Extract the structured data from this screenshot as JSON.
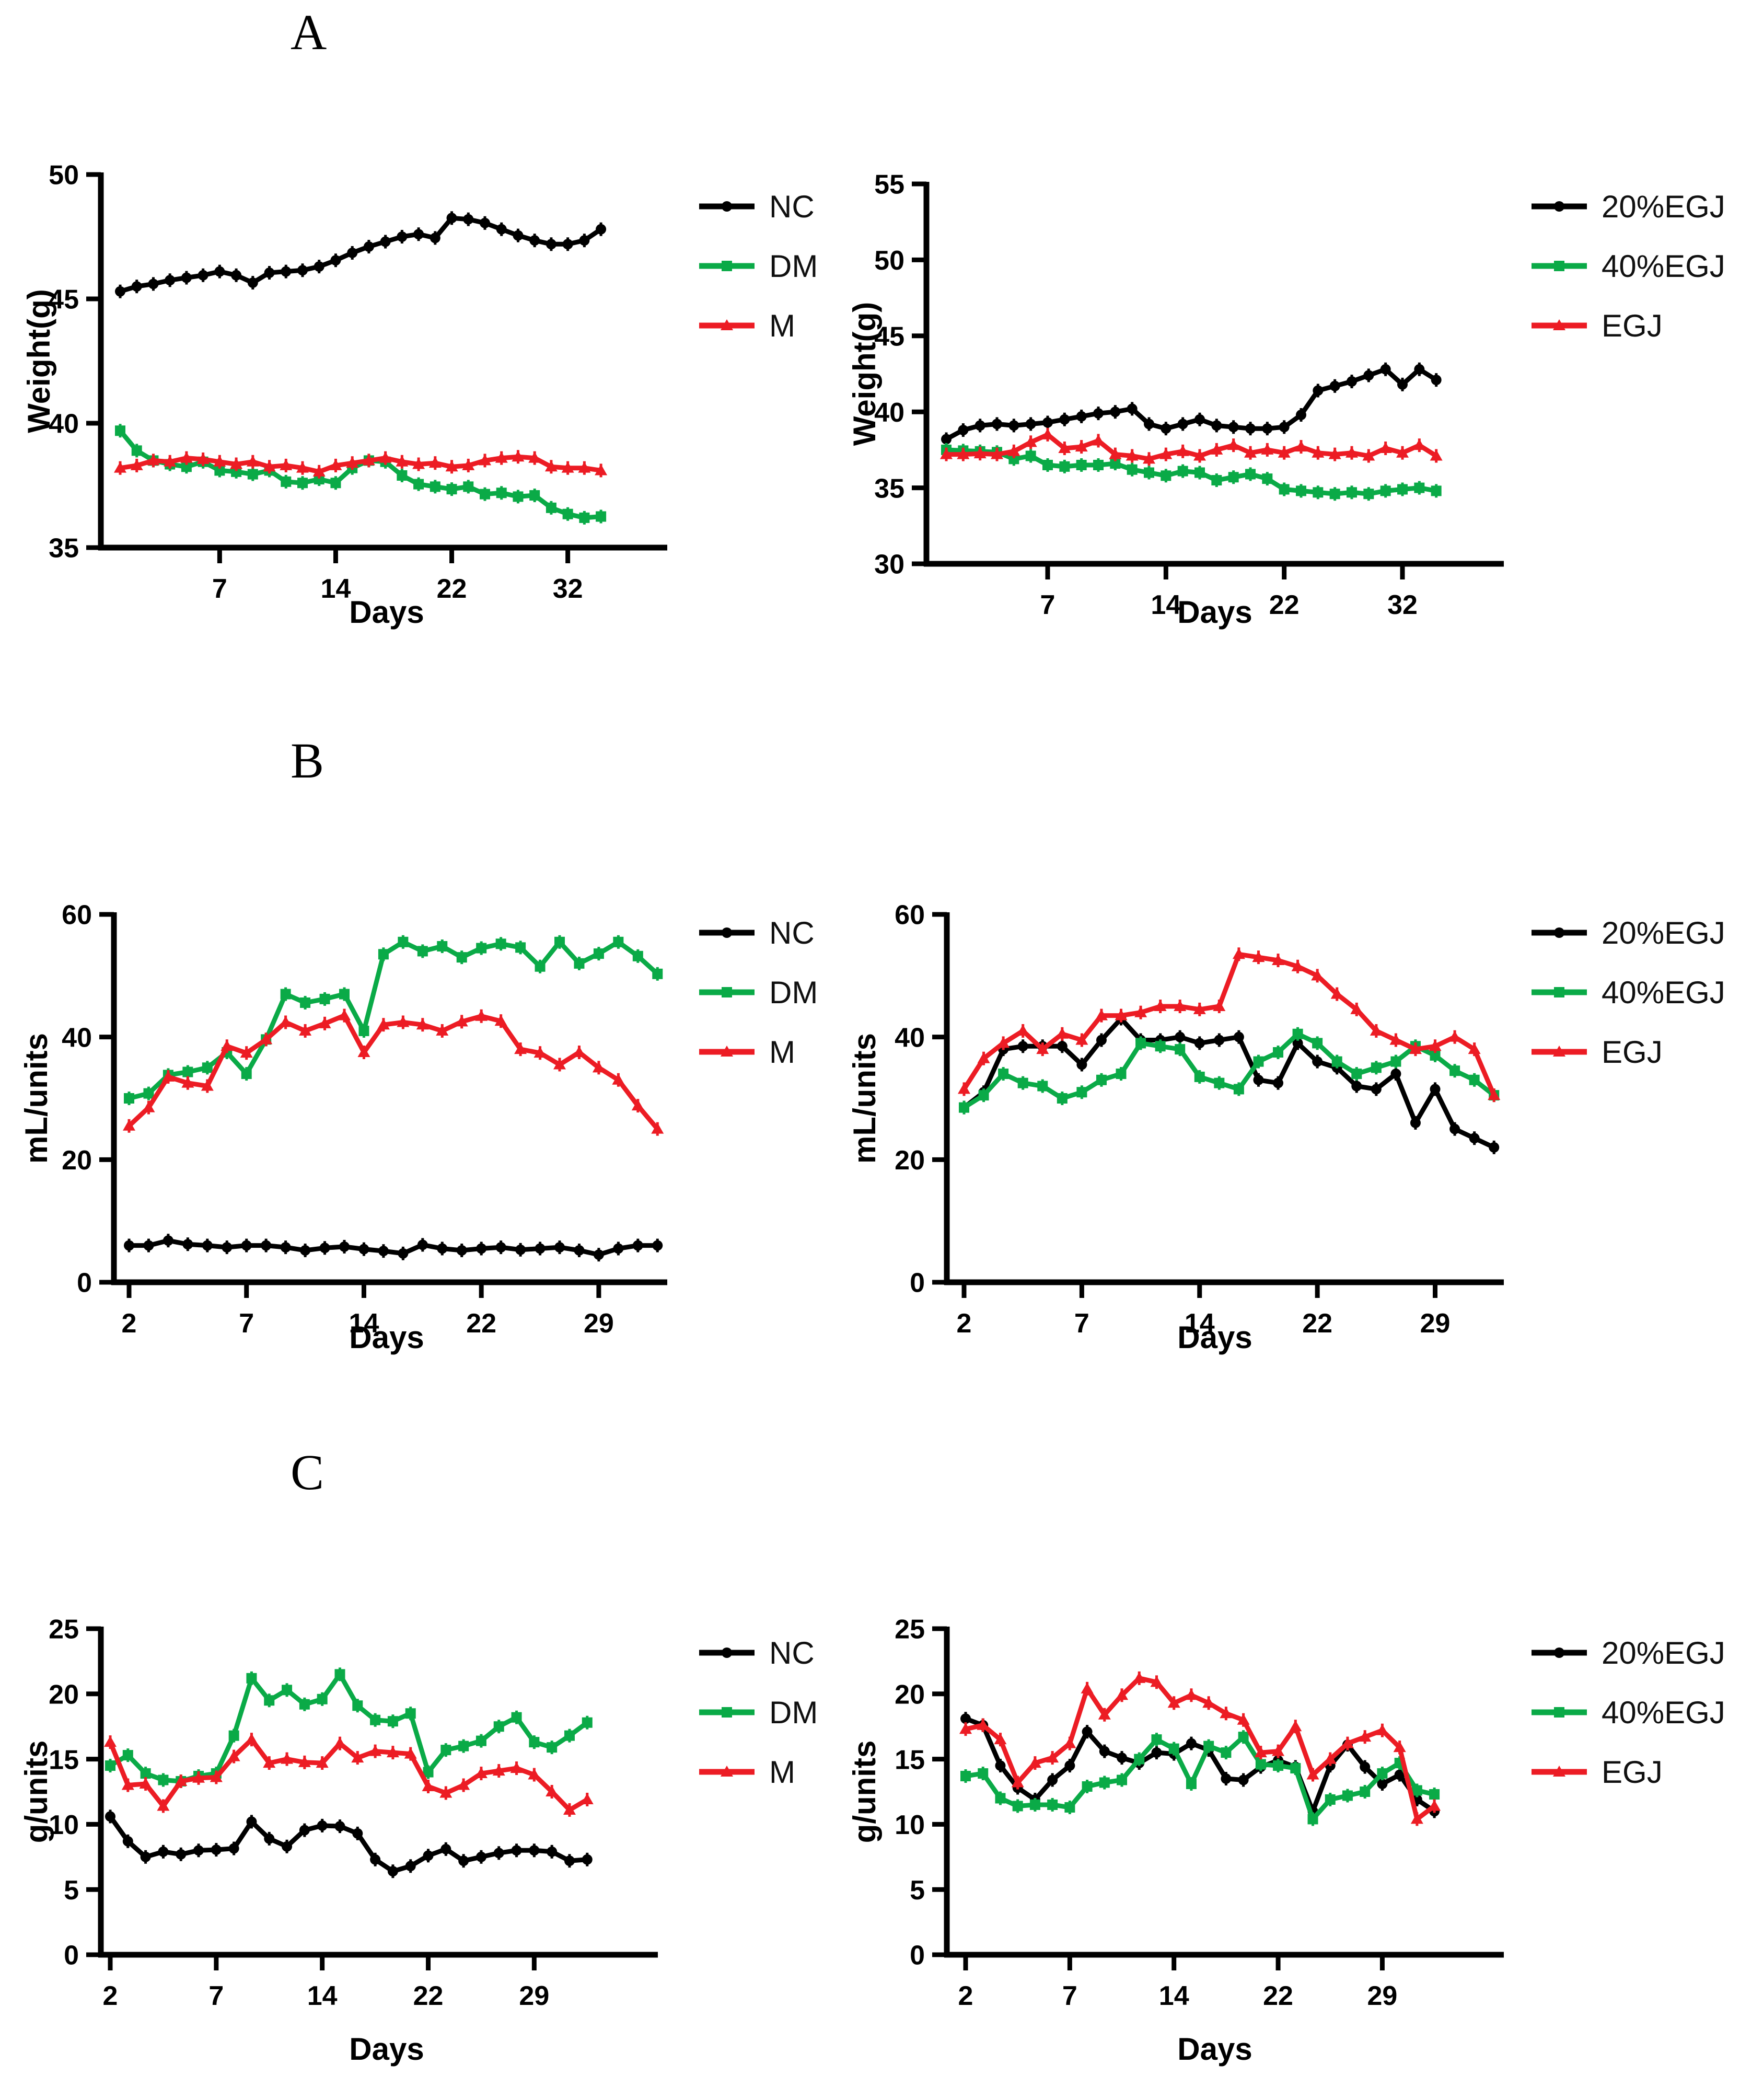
{
  "panels": [
    {
      "label": "A"
    },
    {
      "label": "B"
    },
    {
      "label": "C"
    }
  ],
  "colors": {
    "nc_black": "#000000",
    "dm_green": "#0aaa47",
    "m_red": "#ec1c24"
  },
  "chart_data": [
    {
      "type": "line",
      "panel": "A",
      "position": "left",
      "title": "",
      "xlabel": "Days",
      "ylabel": "Weight(g)",
      "ylim": [
        35,
        50
      ],
      "yticks": [
        35,
        40,
        45,
        50
      ],
      "xticks": {
        "labels": [
          "7",
          "14",
          "22",
          "32"
        ],
        "indices": [
          6,
          13,
          20,
          27
        ]
      },
      "x_count": 30,
      "grid": false,
      "legend_position": "right",
      "series": [
        {
          "name": "NC",
          "color": "#000000",
          "marker": "circle",
          "values": [
            45.3,
            45.5,
            45.6,
            45.75,
            45.85,
            45.95,
            46.1,
            45.95,
            45.65,
            46.05,
            46.1,
            46.15,
            46.3,
            46.55,
            46.85,
            47.1,
            47.3,
            47.5,
            47.6,
            47.45,
            48.25,
            48.2,
            48.05,
            47.8,
            47.55,
            47.35,
            47.2,
            47.2,
            47.35,
            47.8
          ]
        },
        {
          "name": "DM",
          "color": "#0aaa47",
          "marker": "square",
          "values": [
            39.7,
            38.9,
            38.5,
            38.35,
            38.25,
            38.45,
            38.1,
            38.05,
            37.95,
            38.1,
            37.65,
            37.6,
            37.75,
            37.6,
            38.2,
            38.5,
            38.45,
            37.9,
            37.55,
            37.45,
            37.35,
            37.45,
            37.15,
            37.2,
            37.05,
            37.1,
            36.6,
            36.35,
            36.2,
            36.25
          ]
        },
        {
          "name": "M",
          "color": "#ec1c24",
          "marker": "triangle",
          "values": [
            38.2,
            38.3,
            38.5,
            38.45,
            38.6,
            38.55,
            38.45,
            38.35,
            38.45,
            38.25,
            38.3,
            38.2,
            38.05,
            38.3,
            38.4,
            38.5,
            38.6,
            38.45,
            38.35,
            38.4,
            38.25,
            38.3,
            38.5,
            38.6,
            38.65,
            38.6,
            38.25,
            38.2,
            38.2,
            38.1
          ]
        }
      ]
    },
    {
      "type": "line",
      "panel": "A",
      "position": "right",
      "title": "",
      "xlabel": "Days",
      "ylabel": "Weight(g)",
      "ylim": [
        30,
        55
      ],
      "yticks": [
        30,
        35,
        40,
        45,
        50,
        55
      ],
      "xticks": {
        "labels": [
          "7",
          "14",
          "22",
          "32"
        ],
        "indices": [
          6,
          13,
          20,
          27
        ]
      },
      "x_count": 30,
      "grid": false,
      "legend_position": "right",
      "series": [
        {
          "name": "20%EGJ",
          "color": "#000000",
          "marker": "circle",
          "values": [
            38.2,
            38.8,
            39.1,
            39.2,
            39.1,
            39.2,
            39.3,
            39.5,
            39.7,
            39.9,
            40.0,
            40.2,
            39.2,
            38.9,
            39.2,
            39.5,
            39.1,
            39.0,
            38.9,
            38.9,
            39.0,
            39.8,
            41.4,
            41.7,
            42.0,
            42.4,
            42.8,
            41.8,
            42.8,
            42.1
          ]
        },
        {
          "name": "40%EGJ",
          "color": "#0aaa47",
          "marker": "square",
          "values": [
            37.5,
            37.45,
            37.4,
            37.35,
            36.9,
            37.1,
            36.5,
            36.4,
            36.5,
            36.5,
            36.6,
            36.2,
            36.0,
            35.8,
            36.1,
            36.0,
            35.5,
            35.7,
            35.9,
            35.6,
            34.9,
            34.8,
            34.7,
            34.6,
            34.7,
            34.6,
            34.8,
            34.9,
            35.0,
            34.8
          ]
        },
        {
          "name": "EGJ",
          "color": "#ec1c24",
          "marker": "triangle",
          "values": [
            37.2,
            37.2,
            37.25,
            37.2,
            37.4,
            38.0,
            38.5,
            37.6,
            37.7,
            38.1,
            37.2,
            37.1,
            36.9,
            37.2,
            37.4,
            37.1,
            37.5,
            37.8,
            37.3,
            37.5,
            37.3,
            37.7,
            37.3,
            37.2,
            37.3,
            37.1,
            37.6,
            37.3,
            37.8,
            37.1
          ]
        }
      ]
    },
    {
      "type": "line",
      "panel": "B",
      "position": "left",
      "title": "",
      "xlabel": "Days",
      "ylabel": "mL/units",
      "ylim": [
        0,
        60
      ],
      "yticks": [
        0,
        20,
        40,
        60
      ],
      "xticks": {
        "labels": [
          "2",
          "7",
          "14",
          "22",
          "29"
        ],
        "indices": [
          0,
          6,
          12,
          18,
          24
        ]
      },
      "x_count": 28,
      "grid": false,
      "legend_position": "right",
      "series": [
        {
          "name": "NC",
          "color": "#000000",
          "marker": "circle",
          "values": [
            6.0,
            6.0,
            6.8,
            6.2,
            6.0,
            5.7,
            6.0,
            6.0,
            5.7,
            5.2,
            5.6,
            5.8,
            5.4,
            5.1,
            4.7,
            6.1,
            5.5,
            5.2,
            5.5,
            5.7,
            5.3,
            5.5,
            5.7,
            5.2,
            4.5,
            5.5,
            6.0,
            6.0
          ]
        },
        {
          "name": "DM",
          "color": "#0aaa47",
          "marker": "square",
          "values": [
            30.0,
            30.8,
            33.8,
            34.3,
            35.0,
            37.5,
            34.0,
            39.6,
            47.0,
            45.6,
            46.2,
            47.0,
            41.0,
            53.5,
            55.5,
            54.0,
            54.8,
            53.0,
            54.5,
            55.2,
            54.6,
            51.5,
            55.5,
            52.0,
            53.6,
            55.5,
            53.2,
            50.3
          ]
        },
        {
          "name": "M",
          "color": "#ec1c24",
          "marker": "triangle",
          "values": [
            25.5,
            28.5,
            33.5,
            32.5,
            32.0,
            38.5,
            37.4,
            39.6,
            42.4,
            41.0,
            42.2,
            43.5,
            37.5,
            42.0,
            42.4,
            42.0,
            41.0,
            42.5,
            43.4,
            42.6,
            38.0,
            37.4,
            35.5,
            37.5,
            35.0,
            33.0,
            28.8,
            25.0
          ]
        }
      ]
    },
    {
      "type": "line",
      "panel": "B",
      "position": "right",
      "title": "",
      "xlabel": "Days",
      "ylabel": "mL/units",
      "ylim": [
        0,
        60
      ],
      "yticks": [
        0,
        20,
        40,
        60
      ],
      "xticks": {
        "labels": [
          "2",
          "7",
          "14",
          "22",
          "29"
        ],
        "indices": [
          0,
          6,
          12,
          18,
          24
        ]
      },
      "x_count": 28,
      "grid": false,
      "legend_position": "right",
      "series": [
        {
          "name": "20%EGJ",
          "color": "#000000",
          "marker": "circle",
          "values": [
            28.5,
            31.0,
            38.0,
            38.5,
            38.5,
            38.5,
            35.5,
            39.5,
            43.0,
            39.5,
            39.5,
            40.0,
            39.0,
            39.5,
            40.0,
            33.0,
            32.5,
            39.0,
            36.0,
            35.0,
            32.0,
            31.5,
            34.0,
            26.0,
            31.5,
            25.0,
            23.5,
            22.0
          ]
        },
        {
          "name": "40%EGJ",
          "color": "#0aaa47",
          "marker": "square",
          "values": [
            28.5,
            30.5,
            34.0,
            32.5,
            32.0,
            30.0,
            31.0,
            33.0,
            34.0,
            39.0,
            38.5,
            38.0,
            33.5,
            32.5,
            31.5,
            36.0,
            37.5,
            40.5,
            39.0,
            36.0,
            34.0,
            35.0,
            36.0,
            38.5,
            37.0,
            34.5,
            33.0,
            30.5
          ]
        },
        {
          "name": "EGJ",
          "color": "#ec1c24",
          "marker": "triangle",
          "values": [
            31.5,
            36.5,
            39.0,
            41.0,
            38.0,
            40.5,
            39.5,
            43.5,
            43.5,
            44.0,
            45.0,
            45.0,
            44.5,
            45.0,
            53.5,
            53.0,
            52.5,
            51.5,
            50.0,
            47.0,
            44.5,
            41.0,
            39.5,
            38.0,
            38.5,
            40.0,
            38.0,
            30.5
          ]
        }
      ]
    },
    {
      "type": "line",
      "panel": "C",
      "position": "left",
      "title": "",
      "xlabel": "Days",
      "ylabel": "g/units",
      "ylim": [
        0,
        25
      ],
      "yticks": [
        0,
        5,
        10,
        15,
        20,
        25
      ],
      "xticks": {
        "labels": [
          "2",
          "7",
          "14",
          "22",
          "29"
        ],
        "indices": [
          0,
          6,
          12,
          18,
          24
        ]
      },
      "x_count": 28,
      "grid": false,
      "legend_position": "right",
      "series": [
        {
          "name": "NC",
          "color": "#000000",
          "marker": "circle",
          "values": [
            10.6,
            8.7,
            7.5,
            7.9,
            7.7,
            8.0,
            8.05,
            8.15,
            10.2,
            8.9,
            8.3,
            9.55,
            9.9,
            9.85,
            9.3,
            7.3,
            6.4,
            6.8,
            7.6,
            8.1,
            7.2,
            7.5,
            7.8,
            8.0,
            8.0,
            7.9,
            7.2,
            7.3
          ]
        },
        {
          "name": "DM",
          "color": "#0aaa47",
          "marker": "square",
          "values": [
            14.5,
            15.3,
            13.9,
            13.4,
            13.3,
            13.7,
            13.9,
            16.8,
            21.2,
            19.5,
            20.3,
            19.2,
            19.6,
            21.5,
            19.1,
            18.0,
            17.9,
            18.5,
            14.0,
            15.7,
            16.0,
            16.4,
            17.5,
            18.2,
            16.3,
            15.9,
            16.8,
            17.8
          ]
        },
        {
          "name": "M",
          "color": "#ec1c24",
          "marker": "triangle",
          "values": [
            16.3,
            13.0,
            13.1,
            11.4,
            13.3,
            13.55,
            13.6,
            15.2,
            16.5,
            14.7,
            15.0,
            14.75,
            14.7,
            16.2,
            15.1,
            15.6,
            15.5,
            15.4,
            12.9,
            12.4,
            13.0,
            13.9,
            14.1,
            14.3,
            13.8,
            12.5,
            11.1,
            11.9
          ]
        }
      ]
    },
    {
      "type": "line",
      "panel": "C",
      "position": "right",
      "title": "",
      "xlabel": "Days",
      "ylabel": "g/units",
      "ylim": [
        0,
        25
      ],
      "yticks": [
        0,
        5,
        10,
        15,
        20,
        25
      ],
      "xticks": {
        "labels": [
          "2",
          "7",
          "14",
          "22",
          "29"
        ],
        "indices": [
          0,
          6,
          12,
          18,
          24
        ]
      },
      "x_count": 28,
      "grid": false,
      "legend_position": "right",
      "series": [
        {
          "name": "20%EGJ",
          "color": "#000000",
          "marker": "circle",
          "values": [
            18.1,
            17.6,
            14.5,
            12.8,
            11.9,
            13.4,
            14.5,
            17.1,
            15.6,
            15.1,
            14.7,
            15.5,
            15.4,
            16.2,
            15.7,
            13.5,
            13.4,
            14.4,
            14.9,
            14.4,
            11.0,
            14.5,
            16.1,
            14.4,
            13.1,
            13.8,
            11.9,
            11.0
          ]
        },
        {
          "name": "40%EGJ",
          "color": "#0aaa47",
          "marker": "square",
          "values": [
            13.7,
            13.9,
            12.0,
            11.4,
            11.5,
            11.5,
            11.3,
            12.9,
            13.2,
            13.4,
            15.0,
            16.5,
            15.8,
            13.1,
            16.0,
            15.5,
            16.7,
            14.6,
            14.5,
            14.3,
            10.4,
            11.9,
            12.2,
            12.5,
            13.9,
            14.7,
            12.6,
            12.3
          ]
        },
        {
          "name": "EGJ",
          "color": "#ec1c24",
          "marker": "triangle",
          "values": [
            17.3,
            17.6,
            16.5,
            13.2,
            14.7,
            15.1,
            16.2,
            20.4,
            18.4,
            19.9,
            21.2,
            20.9,
            19.3,
            19.9,
            19.3,
            18.5,
            18.0,
            15.5,
            15.6,
            17.5,
            13.8,
            15.0,
            16.2,
            16.7,
            17.2,
            15.9,
            10.4,
            11.4
          ]
        }
      ]
    }
  ]
}
